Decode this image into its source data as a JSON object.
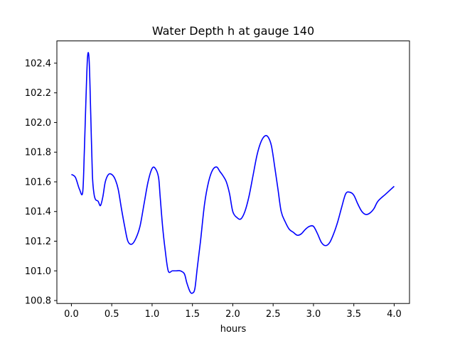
{
  "chart_data": {
    "type": "line",
    "title": "Water Depth h at gauge 140",
    "xlabel": "hours",
    "ylabel": "",
    "xlim": [
      -0.18,
      4.19
    ],
    "ylim": [
      100.78,
      102.55
    ],
    "xticks": [
      0.0,
      0.5,
      1.0,
      1.5,
      2.0,
      2.5,
      3.0,
      3.5,
      4.0
    ],
    "xtick_labels": [
      "0.0",
      "0.5",
      "1.0",
      "1.5",
      "2.0",
      "2.5",
      "3.0",
      "3.5",
      "4.0"
    ],
    "yticks": [
      100.8,
      101.0,
      101.2,
      101.4,
      101.6,
      101.8,
      102.0,
      102.2,
      102.4
    ],
    "ytick_labels": [
      "100.8",
      "101.0",
      "101.2",
      "101.4",
      "101.6",
      "101.8",
      "102.0",
      "102.2",
      "102.4"
    ],
    "grid": false,
    "series": [
      {
        "color": "#0000ff",
        "x": [
          0.0,
          0.05,
          0.1,
          0.14,
          0.16,
          0.18,
          0.2,
          0.22,
          0.24,
          0.26,
          0.28,
          0.3,
          0.33,
          0.36,
          0.39,
          0.42,
          0.46,
          0.5,
          0.54,
          0.58,
          0.62,
          0.66,
          0.7,
          0.75,
          0.8,
          0.85,
          0.9,
          0.95,
          1.0,
          1.04,
          1.08,
          1.1,
          1.13,
          1.16,
          1.2,
          1.25,
          1.3,
          1.35,
          1.4,
          1.43,
          1.47,
          1.5,
          1.53,
          1.56,
          1.6,
          1.65,
          1.7,
          1.75,
          1.8,
          1.84,
          1.88,
          1.92,
          1.96,
          2.0,
          2.05,
          2.1,
          2.15,
          2.2,
          2.25,
          2.3,
          2.35,
          2.4,
          2.44,
          2.48,
          2.52,
          2.56,
          2.6,
          2.65,
          2.7,
          2.75,
          2.8,
          2.85,
          2.9,
          2.95,
          3.0,
          3.05,
          3.1,
          3.15,
          3.2,
          3.25,
          3.3,
          3.35,
          3.4,
          3.45,
          3.5,
          3.55,
          3.6,
          3.65,
          3.7,
          3.75,
          3.8,
          3.9,
          4.0
        ],
        "y": [
          101.65,
          101.63,
          101.55,
          101.53,
          101.8,
          102.15,
          102.44,
          102.42,
          102.05,
          101.65,
          101.52,
          101.48,
          101.47,
          101.44,
          101.5,
          101.6,
          101.65,
          101.65,
          101.62,
          101.55,
          101.42,
          101.3,
          101.2,
          101.18,
          101.22,
          101.3,
          101.45,
          101.6,
          101.69,
          101.69,
          101.63,
          101.5,
          101.3,
          101.15,
          101.0,
          101.0,
          101.0,
          101.0,
          100.98,
          100.92,
          100.86,
          100.85,
          100.88,
          101.02,
          101.2,
          101.45,
          101.6,
          101.68,
          101.7,
          101.67,
          101.64,
          101.6,
          101.52,
          101.4,
          101.36,
          101.35,
          101.4,
          101.5,
          101.64,
          101.78,
          101.87,
          101.91,
          101.9,
          101.84,
          101.7,
          101.55,
          101.4,
          101.33,
          101.28,
          101.26,
          101.24,
          101.25,
          101.28,
          101.3,
          101.3,
          101.25,
          101.19,
          101.17,
          101.19,
          101.25,
          101.33,
          101.43,
          101.52,
          101.53,
          101.51,
          101.45,
          101.4,
          101.38,
          101.39,
          101.42,
          101.47,
          101.52,
          101.57
        ]
      }
    ]
  }
}
